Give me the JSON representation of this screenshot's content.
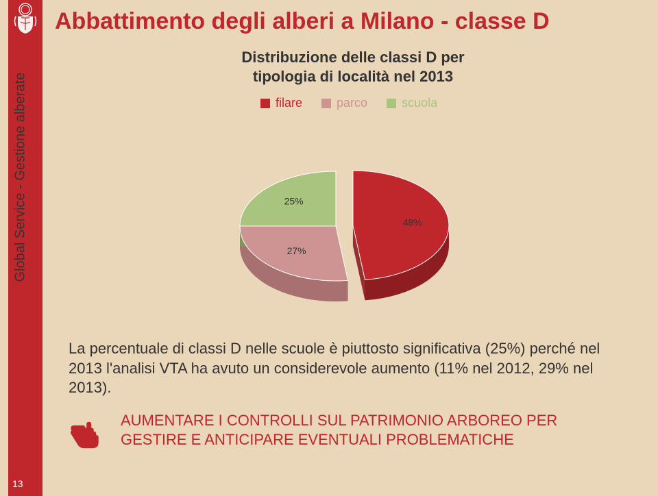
{
  "page": {
    "background": "#ead6b8",
    "stripe_color": "#c0272d",
    "number": "13"
  },
  "sidebar": {
    "label": "Global Service - Gestione alberate"
  },
  "header": {
    "title": "Abbattimento degli alberi a Milano - classe D",
    "title_color": "#c0272d"
  },
  "chart": {
    "title_line1": "Distribuzione delle classi D per",
    "title_line2": "tipologia di località nel 2013",
    "type": "pie-3d-exploded",
    "legend": [
      {
        "label": "filare",
        "color": "#c0272d"
      },
      {
        "label": "parco",
        "color": "#ce9494"
      },
      {
        "label": "scuola",
        "color": "#a9c47f"
      }
    ],
    "slices": [
      {
        "name": "filare",
        "value": 48,
        "label": "48%",
        "color": "#c0272d",
        "side_color": "#8e1d22",
        "exploded": true
      },
      {
        "name": "parco",
        "value": 27,
        "label": "27%",
        "color": "#ce9494",
        "side_color": "#a87070",
        "exploded": false
      },
      {
        "name": "scuola",
        "value": 25,
        "label": "25%",
        "color": "#a9c47f",
        "side_color": "#7f985a",
        "exploded": false
      }
    ],
    "label_fontsize": 14,
    "label_color": "#333333"
  },
  "body": {
    "text": "La percentuale di classi D nelle scuole è piuttosto significativa (25%) perché nel 2013 l'analisi VTA ha avuto un considerevole aumento (11% nel 2012, 29% nel 2013).",
    "color": "#333333"
  },
  "callout": {
    "text": "AUMENTARE I CONTROLLI SUL PATRIMONIO ARBOREO PER GESTIRE E ANTICIPARE EVENTUALI PROBLEMATICHE",
    "color": "#c0272d",
    "icon_fill": "#c0272d"
  }
}
